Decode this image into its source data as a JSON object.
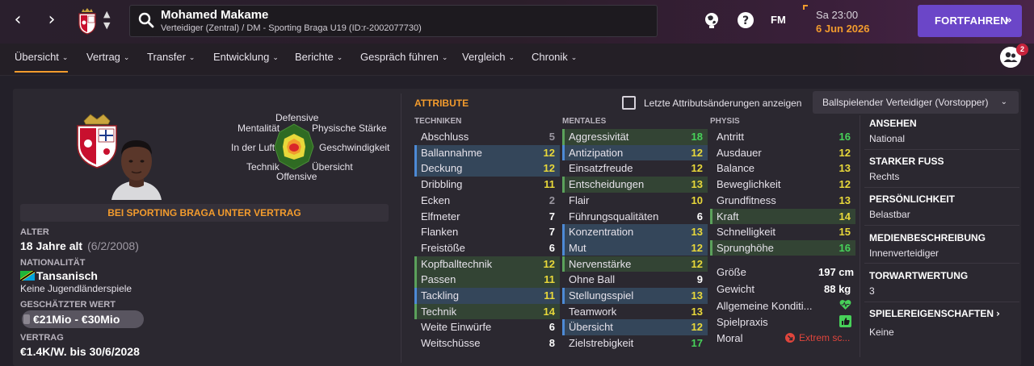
{
  "header": {
    "player_name": "Mohamed Makame",
    "player_sub": "Verteidiger (Zentral) / DM - Sporting Braga U19 (ID:r-2002077730)",
    "fm_logo": "FM",
    "time": "Sa 23:00",
    "date": "6 Jun 2026",
    "continue_label": "FORTFAHREN",
    "notification_count": "2",
    "icons": [
      "back-arrow-icon",
      "forward-arrow-icon",
      "club-crest-icon",
      "up-down-icon",
      "search-icon",
      "world-icon",
      "help-icon",
      "fm-logo",
      "people-icon"
    ]
  },
  "tabs": [
    {
      "label": "Übersicht",
      "active": true
    },
    {
      "label": "Vertrag"
    },
    {
      "label": "Transfer"
    },
    {
      "label": "Entwicklung"
    },
    {
      "label": "Berichte"
    },
    {
      "label": "Gespräch führen"
    },
    {
      "label": "Vergleich"
    },
    {
      "label": "Chronik"
    }
  ],
  "profile": {
    "radar_labels": {
      "top": "Defensive",
      "upper_left": "Mentalität",
      "upper_right": "Physische Stärke",
      "left": "In der Luft",
      "right": "Geschwindigkeit",
      "lower_left": "Technik",
      "lower_right": "Übersicht",
      "bottom": "Offensive"
    },
    "contract_banner": "BEI SPORTING BRAGA UNTER VERTRAG",
    "age_label": "ALTER",
    "age_value": "18 Jahre alt",
    "birthdate": "(6/2/2008)",
    "nationality_label": "NATIONALITÄT",
    "nationality_value": "Tansanisch",
    "intl_caps": "Keine Jugendländerspiele",
    "value_label": "GESCHÄTZTER WERT",
    "value_value": "€21Mio - €30Mio",
    "contract_label": "VERTRAG",
    "contract_value": "€1.4K/W. bis 30/6/2028"
  },
  "attributes": {
    "title": "ATTRIBUTE",
    "show_changes_label": "Letzte Attributsänderungen anzeigen",
    "role_select": "Ballspielender Verteidiger (Vorstopper)",
    "technical_head": "TECHNIKEN",
    "mental_head": "MENTALES",
    "physical_head": "PHYSIS",
    "technical": [
      {
        "name": "Abschluss",
        "value": "5",
        "hl": "none",
        "c": "grey"
      },
      {
        "name": "Ballannahme",
        "value": "12",
        "hl": "blue",
        "c": "yellow"
      },
      {
        "name": "Deckung",
        "value": "12",
        "hl": "blue",
        "c": "yellow"
      },
      {
        "name": "Dribbling",
        "value": "11",
        "hl": "none",
        "c": "yellow"
      },
      {
        "name": "Ecken",
        "value": "2",
        "hl": "none",
        "c": "grey"
      },
      {
        "name": "Elfmeter",
        "value": "7",
        "hl": "none",
        "c": "white"
      },
      {
        "name": "Flanken",
        "value": "7",
        "hl": "none",
        "c": "white"
      },
      {
        "name": "Freistöße",
        "value": "6",
        "hl": "none",
        "c": "white"
      },
      {
        "name": "Kopfballtechnik",
        "value": "12",
        "hl": "green",
        "c": "yellow"
      },
      {
        "name": "Passen",
        "value": "11",
        "hl": "green",
        "c": "yellow"
      },
      {
        "name": "Tackling",
        "value": "11",
        "hl": "blue",
        "c": "yellow"
      },
      {
        "name": "Technik",
        "value": "14",
        "hl": "green",
        "c": "yellow"
      },
      {
        "name": "Weite Einwürfe",
        "value": "6",
        "hl": "none",
        "c": "white"
      },
      {
        "name": "Weitschüsse",
        "value": "8",
        "hl": "none",
        "c": "white"
      }
    ],
    "mental": [
      {
        "name": "Aggressivität",
        "value": "18",
        "hl": "green",
        "c": "green"
      },
      {
        "name": "Antizipation",
        "value": "12",
        "hl": "blue",
        "c": "yellow"
      },
      {
        "name": "Einsatzfreude",
        "value": "12",
        "hl": "none",
        "c": "yellow"
      },
      {
        "name": "Entscheidungen",
        "value": "13",
        "hl": "green",
        "c": "yellow"
      },
      {
        "name": "Flair",
        "value": "10",
        "hl": "none",
        "c": "yellow"
      },
      {
        "name": "Führungsqualitäten",
        "value": "6",
        "hl": "none",
        "c": "white"
      },
      {
        "name": "Konzentration",
        "value": "13",
        "hl": "blue",
        "c": "yellow"
      },
      {
        "name": "Mut",
        "value": "12",
        "hl": "blue",
        "c": "yellow"
      },
      {
        "name": "Nervenstärke",
        "value": "12",
        "hl": "green",
        "c": "yellow"
      },
      {
        "name": "Ohne Ball",
        "value": "9",
        "hl": "none",
        "c": "white"
      },
      {
        "name": "Stellungsspiel",
        "value": "13",
        "hl": "blue",
        "c": "yellow"
      },
      {
        "name": "Teamwork",
        "value": "13",
        "hl": "none",
        "c": "yellow"
      },
      {
        "name": "Übersicht",
        "value": "12",
        "hl": "blue",
        "c": "yellow"
      },
      {
        "name": "Zielstrebigkeit",
        "value": "17",
        "hl": "none",
        "c": "green"
      }
    ],
    "physical": [
      {
        "name": "Antritt",
        "value": "16",
        "hl": "none",
        "c": "green"
      },
      {
        "name": "Ausdauer",
        "value": "12",
        "hl": "none",
        "c": "yellow"
      },
      {
        "name": "Balance",
        "value": "13",
        "hl": "none",
        "c": "yellow"
      },
      {
        "name": "Beweglichkeit",
        "value": "12",
        "hl": "none",
        "c": "yellow"
      },
      {
        "name": "Grundfitness",
        "value": "13",
        "hl": "none",
        "c": "yellow"
      },
      {
        "name": "Kraft",
        "value": "14",
        "hl": "green",
        "c": "yellow"
      },
      {
        "name": "Schnelligkeit",
        "value": "15",
        "hl": "none",
        "c": "yellow"
      },
      {
        "name": "Sprunghöhe",
        "value": "16",
        "hl": "green",
        "c": "green"
      }
    ],
    "physical_extra": {
      "height_label": "Größe",
      "height_value": "197 cm",
      "weight_label": "Gewicht",
      "weight_value": "88 kg",
      "condition_label": "Allgemeine Konditi...",
      "practice_label": "Spielpraxis",
      "morale_label": "Moral",
      "morale_value": "Extrem sc..."
    }
  },
  "info": {
    "reputation_label": "ANSEHEN",
    "reputation_value": "National",
    "foot_label": "STARKER FUSS",
    "foot_value": "Rechts",
    "personality_label": "PERSÖNLICHKEIT",
    "personality_value": "Belastbar",
    "media_label": "MEDIENBESCHREIBUNG",
    "media_value": "Innenverteidiger",
    "gk_label": "TORWARTWERTUNG",
    "gk_value": "3",
    "traits_label": "SPIELEREIGENSCHAFTEN",
    "traits_value": "Keine"
  },
  "colors": {
    "accent": "#f29b2d",
    "primary_button": "#6b46c8",
    "good": "#47d159",
    "ok": "#e8d83a"
  }
}
